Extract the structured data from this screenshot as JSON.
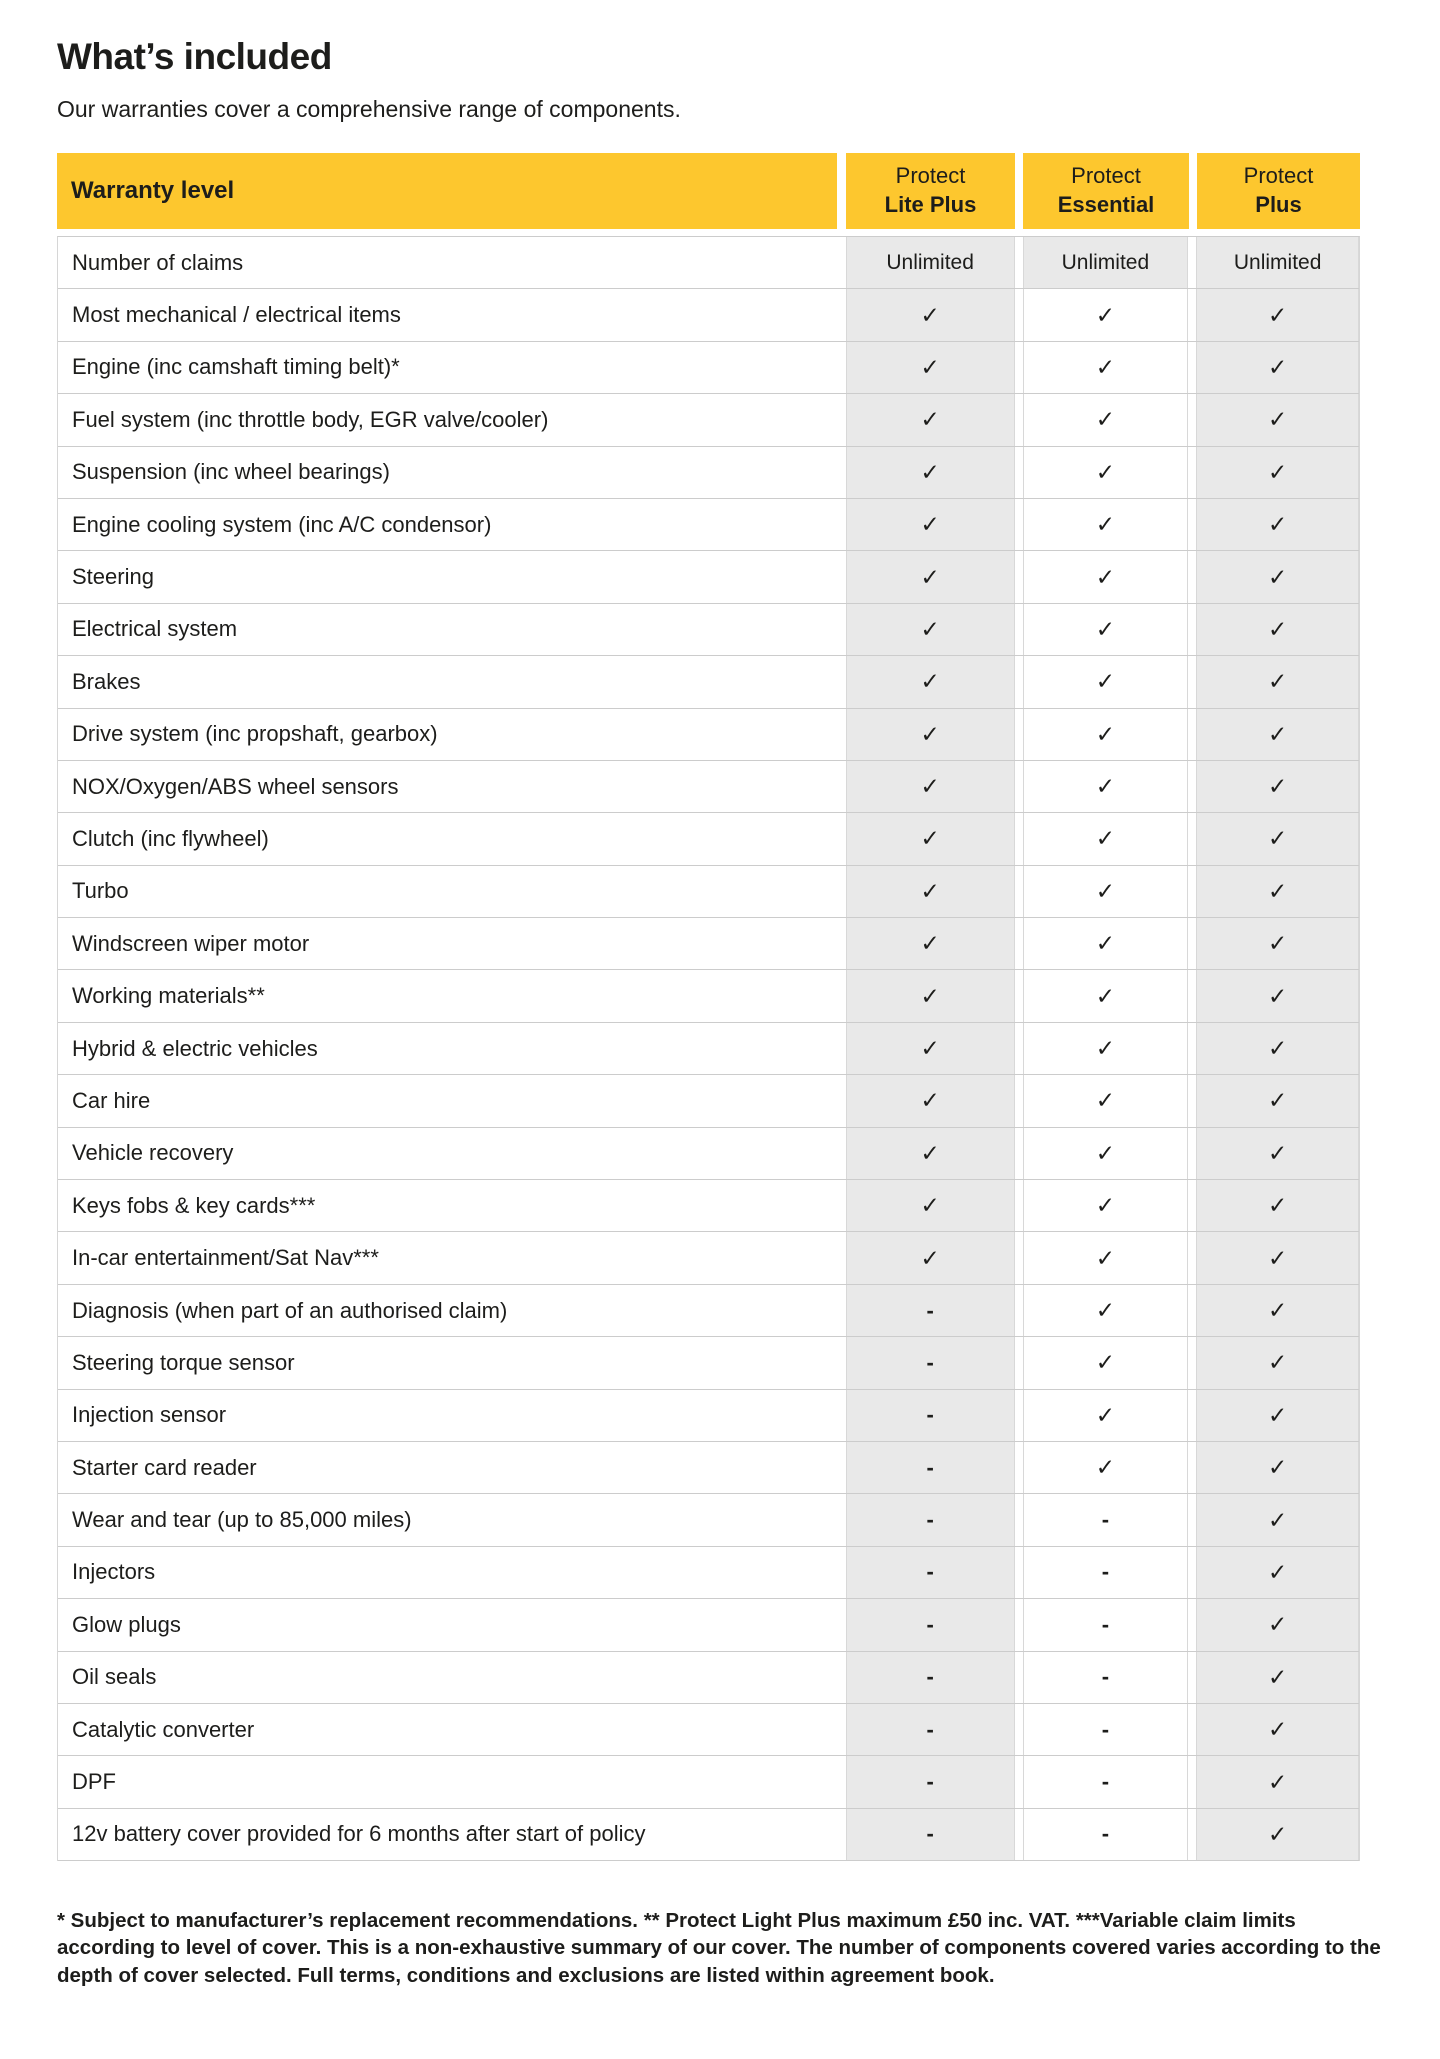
{
  "title": "What’s included",
  "subtitle": "Our warranties cover a comprehensive range of components.",
  "colors": {
    "accent_yellow": "#fdc72e",
    "cell_gray": "#e9e9e9",
    "row_line": "#cccccc",
    "text": "#1d1d1b"
  },
  "glyphs": {
    "check": "✓",
    "dash": "-"
  },
  "table": {
    "header_label": "Warranty level",
    "plans": [
      {
        "line1": "Protect",
        "line2": "Lite Plus"
      },
      {
        "line1": "Protect",
        "line2": "Essential"
      },
      {
        "line1": "Protect",
        "line2": "Plus"
      }
    ],
    "rows": [
      {
        "label": "Number of claims",
        "values": [
          "Unlimited",
          "Unlimited",
          "Unlimited"
        ]
      },
      {
        "label": "Most mechanical / electrical items",
        "values": [
          "check",
          "check",
          "check"
        ]
      },
      {
        "label": "Engine (inc camshaft timing belt)*",
        "values": [
          "check",
          "check",
          "check"
        ]
      },
      {
        "label": "Fuel system (inc throttle body, EGR valve/cooler)",
        "values": [
          "check",
          "check",
          "check"
        ]
      },
      {
        "label": "Suspension (inc wheel bearings)",
        "values": [
          "check",
          "check",
          "check"
        ]
      },
      {
        "label": "Engine cooling system (inc A/C condensor)",
        "values": [
          "check",
          "check",
          "check"
        ]
      },
      {
        "label": "Steering",
        "values": [
          "check",
          "check",
          "check"
        ]
      },
      {
        "label": "Electrical system",
        "values": [
          "check",
          "check",
          "check"
        ]
      },
      {
        "label": "Brakes",
        "values": [
          "check",
          "check",
          "check"
        ]
      },
      {
        "label": "Drive system (inc propshaft, gearbox)",
        "values": [
          "check",
          "check",
          "check"
        ]
      },
      {
        "label": "NOX/Oxygen/ABS wheel sensors",
        "values": [
          "check",
          "check",
          "check"
        ]
      },
      {
        "label": "Clutch (inc flywheel)",
        "values": [
          "check",
          "check",
          "check"
        ]
      },
      {
        "label": "Turbo",
        "values": [
          "check",
          "check",
          "check"
        ]
      },
      {
        "label": "Windscreen wiper motor",
        "values": [
          "check",
          "check",
          "check"
        ]
      },
      {
        "label": "Working materials**",
        "values": [
          "check",
          "check",
          "check"
        ]
      },
      {
        "label": "Hybrid & electric vehicles",
        "values": [
          "check",
          "check",
          "check"
        ]
      },
      {
        "label": "Car hire",
        "values": [
          "check",
          "check",
          "check"
        ]
      },
      {
        "label": "Vehicle recovery",
        "values": [
          "check",
          "check",
          "check"
        ]
      },
      {
        "label": "Keys fobs & key cards***",
        "values": [
          "check",
          "check",
          "check"
        ]
      },
      {
        "label": "In-car entertainment/Sat Nav***",
        "values": [
          "check",
          "check",
          "check"
        ]
      },
      {
        "label": "Diagnosis (when part of an authorised claim)",
        "values": [
          "dash",
          "check",
          "check"
        ]
      },
      {
        "label": "Steering torque sensor",
        "values": [
          "dash",
          "check",
          "check"
        ]
      },
      {
        "label": "Injection sensor",
        "values": [
          "dash",
          "check",
          "check"
        ]
      },
      {
        "label": "Starter card reader",
        "values": [
          "dash",
          "check",
          "check"
        ]
      },
      {
        "label": "Wear and tear (up to 85,000 miles)",
        "values": [
          "dash",
          "dash",
          "check"
        ]
      },
      {
        "label": "Injectors",
        "values": [
          "dash",
          "dash",
          "check"
        ]
      },
      {
        "label": "Glow plugs",
        "values": [
          "dash",
          "dash",
          "check"
        ]
      },
      {
        "label": "Oil seals",
        "values": [
          "dash",
          "dash",
          "check"
        ]
      },
      {
        "label": "Catalytic converter",
        "values": [
          "dash",
          "dash",
          "check"
        ]
      },
      {
        "label": "DPF",
        "values": [
          "dash",
          "dash",
          "check"
        ]
      },
      {
        "label": "12v battery cover provided for 6 months after start of policy",
        "values": [
          "dash",
          "dash",
          "check"
        ]
      }
    ]
  },
  "footnote": "* Subject to manufacturer’s replacement recommendations. ** Protect Light Plus maximum £50 inc. VAT. ***Variable claim limits according to level of cover. This is a non-exhaustive summary of our cover. The number of components covered varies according to the depth of cover selected. Full terms, conditions and exclusions are listed within agreement book."
}
